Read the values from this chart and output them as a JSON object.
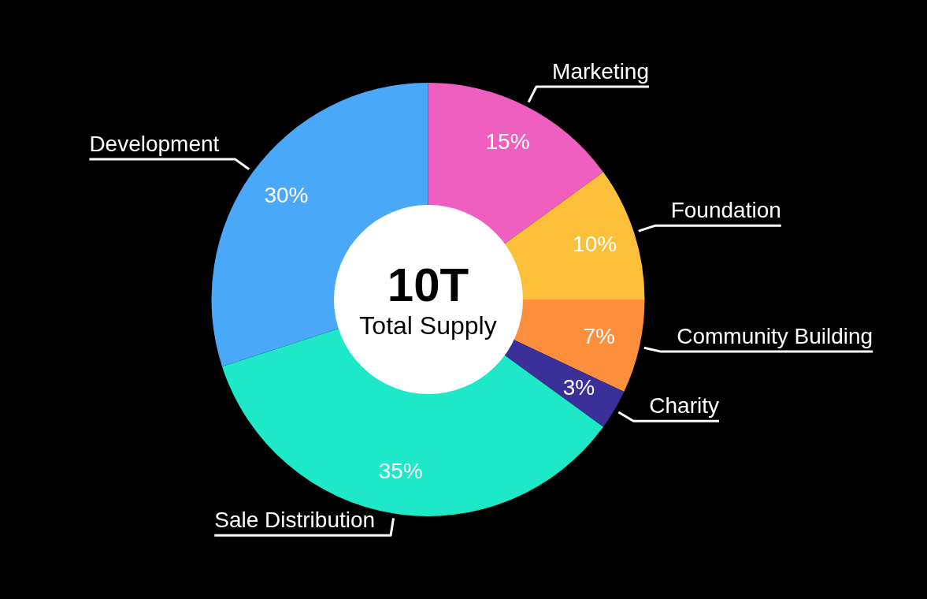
{
  "chart_data": {
    "type": "donut",
    "categories": [
      "Marketing",
      "Foundation",
      "Community Building",
      "Charity",
      "Sale Distribution",
      "Development"
    ],
    "values": [
      15,
      10,
      7,
      3,
      35,
      30
    ],
    "colors": [
      "#ee5fc0",
      "#fbbf3a",
      "#fb8f3c",
      "#3b2f9a",
      "#1de8c8",
      "#4aa8f8"
    ],
    "value_labels": [
      "15%",
      "10%",
      "7%",
      "3%",
      "35%",
      "30%"
    ],
    "annotations": [
      "10T",
      "Total Supply"
    ]
  }
}
